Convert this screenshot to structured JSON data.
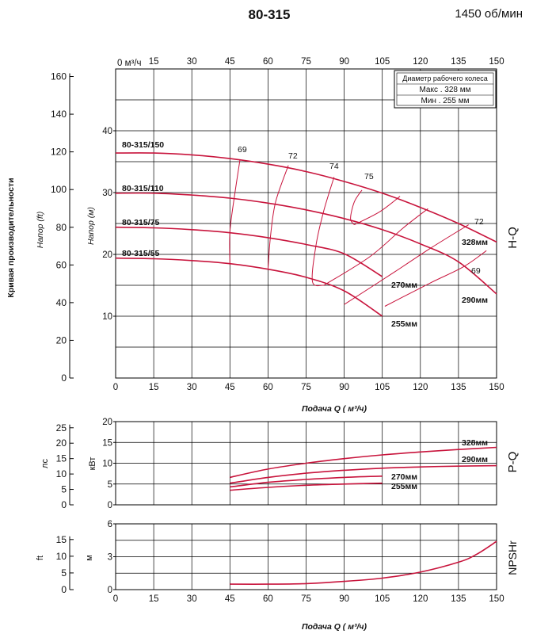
{
  "header": {
    "title": "80-315",
    "speed": "1450 об/мин"
  },
  "colors": {
    "curve": "#c8143c",
    "grid": "#000000",
    "frame": "#000000"
  },
  "side_label": "Кривая производительности",
  "legend": {
    "title": "Диаметр рабочего колеса",
    "rows": [
      "Макс .  328 мм",
      "Мин .   255 мм"
    ]
  },
  "chart_data": [
    {
      "type": "line",
      "panel": "H-Q",
      "title": "",
      "xlabel": "Подача Q ( м³/ч)",
      "ylabel": "Напор (м)",
      "ylabel_ft": "Напор (ft)",
      "panel_label": "H-Q",
      "top_axis_unit": "м³/ч",
      "x_ticks": [
        0,
        15,
        30,
        45,
        60,
        75,
        90,
        105,
        120,
        135,
        150
      ],
      "xlim": [
        0,
        150
      ],
      "y_ticks": [
        10,
        20,
        30,
        40
      ],
      "ylim": [
        0,
        50
      ],
      "y_ft_ticks": [
        0,
        20,
        40,
        60,
        80,
        100,
        120,
        140,
        160
      ],
      "ylim_ft": [
        0,
        164
      ],
      "grid": true,
      "series": [
        {
          "name": "328мм",
          "x": [
            0,
            15,
            30,
            45,
            60,
            75,
            90,
            105,
            120,
            135,
            150
          ],
          "y": [
            36.4,
            36.4,
            36.1,
            35.5,
            34.6,
            33.4,
            31.8,
            29.9,
            27.6,
            25.0,
            22.0
          ]
        },
        {
          "name": "290мм",
          "x": [
            0,
            15,
            30,
            45,
            60,
            75,
            90,
            105,
            120,
            135,
            150
          ],
          "y": [
            29.9,
            29.9,
            29.6,
            29.1,
            28.3,
            27.2,
            25.8,
            24.0,
            21.7,
            18.8,
            13.6
          ]
        },
        {
          "name": "270мм",
          "x": [
            0,
            15,
            30,
            45,
            60,
            75,
            90,
            105
          ],
          "y": [
            24.4,
            24.3,
            24.0,
            23.5,
            22.7,
            21.6,
            20.1,
            16.4
          ]
        },
        {
          "name": "255мм",
          "x": [
            0,
            15,
            30,
            45,
            60,
            75,
            90,
            105
          ],
          "y": [
            19.4,
            19.3,
            19.0,
            18.5,
            17.6,
            16.3,
            14.1,
            10.0
          ]
        }
      ],
      "model_labels": [
        "80-315/150",
        "80-315/110",
        "80-315/75",
        "80-315/55"
      ],
      "efficiency_labels": [
        "69",
        "72",
        "74",
        "75",
        "72",
        "69"
      ],
      "efficiency_lines": [
        {
          "value": 69,
          "points": [
            [
              45,
              18.3
            ],
            [
              45,
              23.7
            ],
            [
              47,
              30.0
            ],
            [
              49,
              35.4
            ]
          ]
        },
        {
          "value": 72,
          "points": [
            [
              60,
              17.6
            ],
            [
              61,
              23.0
            ],
            [
              63,
              28.5
            ],
            [
              68,
              34.4
            ]
          ]
        },
        {
          "value": 74,
          "points": [
            [
              82,
              15.0
            ],
            [
              77.5,
              15.6
            ],
            [
              79,
              21.7
            ],
            [
              82,
              27.1
            ],
            [
              86,
              32.5
            ]
          ]
        },
        {
          "value": 75,
          "points": [
            [
              94,
              24.8
            ],
            [
              92.5,
              25.8
            ],
            [
              94,
              28.5
            ],
            [
              97,
              30.4
            ]
          ]
        },
        {
          "value": 75,
          "points": [
            [
              94,
              24.8
            ],
            [
              104,
              26.9
            ],
            [
              112,
              29.4
            ]
          ]
        },
        {
          "value": 74,
          "points": [
            [
              82,
              15.0
            ],
            [
              100,
              19.6
            ],
            [
              113,
              24.2
            ],
            [
              123,
              27.4
            ]
          ]
        },
        {
          "value": 72,
          "points": [
            [
              90,
              11.9
            ],
            [
              110,
              17.2
            ],
            [
              124,
              21.0
            ],
            [
              139,
              24.8
            ]
          ]
        },
        {
          "value": 69,
          "points": [
            [
              106,
              11.6
            ],
            [
              124,
              15.4
            ],
            [
              137,
              18.0
            ],
            [
              146,
              20.6
            ]
          ]
        }
      ]
    },
    {
      "type": "line",
      "panel": "P-Q",
      "xlabel": "",
      "ylabel": "кВт",
      "ylabel_hp": "лс",
      "panel_label": "P-Q",
      "x_ticks": [
        0,
        15,
        30,
        45,
        60,
        75,
        90,
        105,
        120,
        135,
        150
      ],
      "xlim": [
        0,
        150
      ],
      "y_ticks": [
        0,
        5,
        10,
        15,
        20
      ],
      "ylim": [
        0,
        20
      ],
      "y_hp_ticks": [
        0,
        5,
        10,
        15,
        20,
        25
      ],
      "ylim_hp": [
        0,
        27
      ],
      "grid": true,
      "series": [
        {
          "name": "328мм",
          "x": [
            45,
            60,
            75,
            90,
            105,
            120,
            135,
            150
          ],
          "y": [
            6.6,
            8.6,
            10.0,
            11.1,
            12.0,
            12.7,
            13.3,
            13.8
          ]
        },
        {
          "name": "290мм",
          "x": [
            45,
            60,
            75,
            90,
            105,
            120,
            135,
            150
          ],
          "y": [
            5.2,
            6.6,
            7.6,
            8.3,
            8.8,
            9.1,
            9.3,
            9.4
          ]
        },
        {
          "name": "270мм",
          "x": [
            45,
            60,
            75,
            90,
            105
          ],
          "y": [
            4.3,
            5.4,
            6.1,
            6.6,
            6.9
          ]
        },
        {
          "name": "255мм",
          "x": [
            45,
            60,
            75,
            90,
            105
          ],
          "y": [
            3.5,
            4.2,
            4.7,
            5.0,
            5.2
          ]
        }
      ]
    },
    {
      "type": "line",
      "panel": "NPSHr",
      "xlabel": "Подача Q ( м³/ч)",
      "ylabel": "м",
      "ylabel_ft": "ft",
      "panel_label": "NPSHr",
      "x_ticks": [
        0,
        15,
        30,
        45,
        60,
        75,
        90,
        105,
        120,
        135,
        150
      ],
      "xlim": [
        0,
        150
      ],
      "y_ticks": [
        0,
        3,
        6
      ],
      "ylim": [
        0,
        6
      ],
      "y_ft_ticks": [
        0,
        5,
        10,
        15
      ],
      "ylim_ft": [
        0,
        19.7
      ],
      "grid": true,
      "series": [
        {
          "name": "NPSHr",
          "x": [
            45,
            60,
            75,
            90,
            105,
            120,
            135,
            142,
            150
          ],
          "y": [
            0.5,
            0.5,
            0.55,
            0.75,
            1.05,
            1.6,
            2.5,
            3.2,
            4.4
          ]
        }
      ]
    }
  ]
}
